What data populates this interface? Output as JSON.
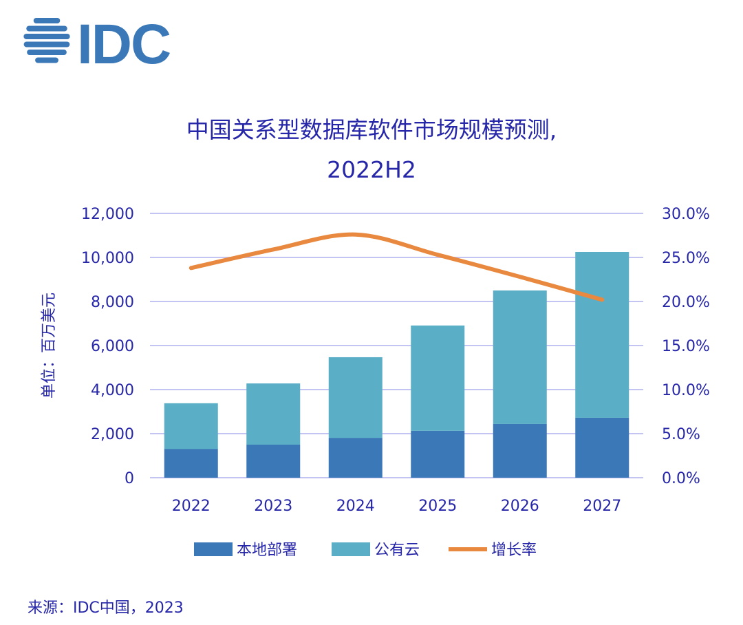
{
  "logo": {
    "text": "IDC",
    "color": "#3b78b8"
  },
  "chart_data": {
    "type": "bar",
    "title": "中国关系型数据库软件市场规模预测,",
    "subtitle": "2022H2",
    "ylabel": "单位：百万美元",
    "categories": [
      "2022",
      "2023",
      "2024",
      "2025",
      "2026",
      "2027"
    ],
    "stacked": true,
    "ylim": [
      0,
      12000
    ],
    "y_ticks": [
      "0",
      "2,000",
      "4,000",
      "6,000",
      "8,000",
      "10,000",
      "12,000"
    ],
    "y2lim": [
      0,
      30
    ],
    "y2_ticks": [
      "0.0%",
      "5.0%",
      "10.0%",
      "15.0%",
      "20.0%",
      "25.0%",
      "30.0%"
    ],
    "grid": true,
    "legend_placement": "bottom",
    "series": [
      {
        "name": "本地部署",
        "type": "bar",
        "color": "#3b78b8",
        "values": [
          1310,
          1500,
          1810,
          2130,
          2440,
          2720
        ]
      },
      {
        "name": "公有云",
        "type": "bar",
        "color": "#5aaec6",
        "values": [
          2070,
          2780,
          3660,
          4780,
          6060,
          7530
        ]
      },
      {
        "name": "增长率",
        "type": "line",
        "axis": "right",
        "unit": "%",
        "color": "#e8893f",
        "values": [
          23.8,
          25.9,
          27.6,
          25.3,
          22.8,
          20.2
        ]
      }
    ],
    "source": "来源：IDC中国，2023"
  }
}
